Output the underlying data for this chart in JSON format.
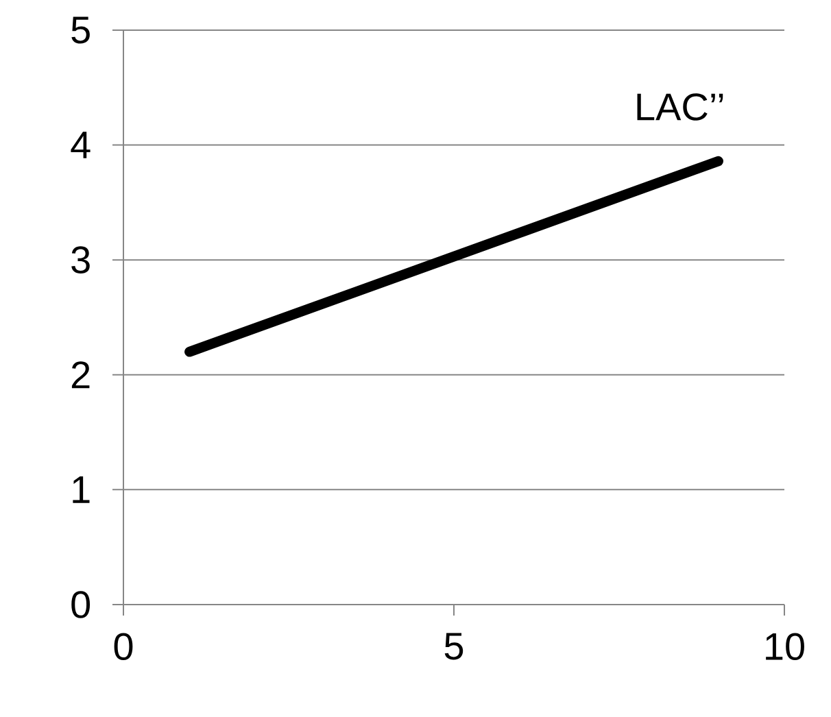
{
  "chart_data": {
    "type": "line",
    "x": [
      1,
      9
    ],
    "series": [
      {
        "name": "LAC’’",
        "color": "#000000",
        "values": [
          2.2,
          3.86
        ]
      }
    ],
    "xlim": [
      0,
      10
    ],
    "ylim": [
      0,
      5
    ],
    "xticks": [
      0,
      5,
      10
    ],
    "yticks": [
      0,
      1,
      2,
      3,
      4,
      5
    ],
    "grid": "y",
    "legend": false,
    "marker": "none",
    "line_style": "solid"
  }
}
